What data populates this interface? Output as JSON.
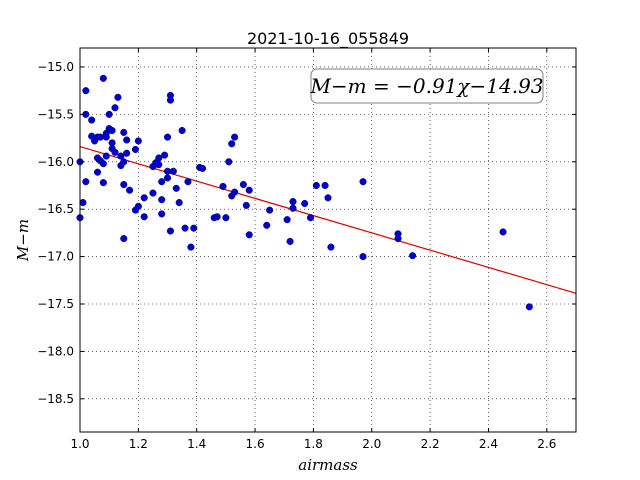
{
  "chart_data": {
    "type": "scatter",
    "title": "2021-10-16_055849",
    "xlabel": "airmass",
    "ylabel": "M−m",
    "xlim": [
      1.0,
      2.7
    ],
    "ylim": [
      -18.85,
      -14.8
    ],
    "y_inverted": true,
    "grid": true,
    "xticks": [
      1.0,
      1.2,
      1.4,
      1.6,
      1.8,
      2.0,
      2.2,
      2.4,
      2.6
    ],
    "xtick_labels": [
      "1.0",
      "1.2",
      "1.4",
      "1.6",
      "1.8",
      "2.0",
      "2.2",
      "2.4",
      "2.6"
    ],
    "yticks": [
      -15.0,
      -15.5,
      -16.0,
      -16.5,
      -17.0,
      -17.5,
      -18.0,
      -18.5
    ],
    "ytick_labels": [
      "−15.0",
      "−15.5",
      "−16.0",
      "−16.5",
      "−17.0",
      "−17.5",
      "−18.0",
      "−18.5"
    ],
    "annotation": "M−m = −0.91χ−14.93",
    "fit": {
      "slope": -0.91,
      "intercept": -14.93,
      "color": "#e00000"
    },
    "marker_color": "#0000cc",
    "points": [
      [
        1.0,
        -16.0
      ],
      [
        1.0,
        -16.59
      ],
      [
        1.01,
        -16.43
      ],
      [
        1.02,
        -16.21
      ],
      [
        1.02,
        -15.25
      ],
      [
        1.02,
        -15.5
      ],
      [
        1.04,
        -15.56
      ],
      [
        1.04,
        -15.73
      ],
      [
        1.05,
        -15.78
      ],
      [
        1.06,
        -15.74
      ],
      [
        1.06,
        -15.96
      ],
      [
        1.06,
        -16.11
      ],
      [
        1.07,
        -15.99
      ],
      [
        1.07,
        -15.74
      ],
      [
        1.08,
        -16.02
      ],
      [
        1.08,
        -15.12
      ],
      [
        1.08,
        -16.22
      ],
      [
        1.09,
        -15.7
      ],
      [
        1.09,
        -15.74
      ],
      [
        1.09,
        -15.94
      ],
      [
        1.1,
        -15.65
      ],
      [
        1.1,
        -15.5
      ],
      [
        1.11,
        -15.67
      ],
      [
        1.11,
        -15.86
      ],
      [
        1.11,
        -15.8
      ],
      [
        1.12,
        -15.43
      ],
      [
        1.12,
        -15.9
      ],
      [
        1.13,
        -15.32
      ],
      [
        1.14,
        -15.94
      ],
      [
        1.14,
        -16.04
      ],
      [
        1.15,
        -16.0
      ],
      [
        1.15,
        -16.24
      ],
      [
        1.15,
        -15.69
      ],
      [
        1.15,
        -16.81
      ],
      [
        1.16,
        -15.77
      ],
      [
        1.16,
        -15.91
      ],
      [
        1.17,
        -16.3
      ],
      [
        1.19,
        -15.87
      ],
      [
        1.19,
        -16.51
      ],
      [
        1.2,
        -15.78
      ],
      [
        1.2,
        -16.47
      ],
      [
        1.22,
        -16.38
      ],
      [
        1.22,
        -16.58
      ],
      [
        1.25,
        -16.33
      ],
      [
        1.25,
        -16.05
      ],
      [
        1.26,
        -16.01
      ],
      [
        1.27,
        -15.96
      ],
      [
        1.27,
        -16.03
      ],
      [
        1.28,
        -16.21
      ],
      [
        1.28,
        -16.55
      ],
      [
        1.28,
        -16.4
      ],
      [
        1.29,
        -15.93
      ],
      [
        1.3,
        -16.1
      ],
      [
        1.3,
        -16.17
      ],
      [
        1.3,
        -15.74
      ],
      [
        1.31,
        -15.3
      ],
      [
        1.31,
        -15.35
      ],
      [
        1.31,
        -16.73
      ],
      [
        1.32,
        -16.1
      ],
      [
        1.33,
        -16.28
      ],
      [
        1.34,
        -16.43
      ],
      [
        1.35,
        -15.67
      ],
      [
        1.36,
        -16.7
      ],
      [
        1.37,
        -16.21
      ],
      [
        1.38,
        -16.9
      ],
      [
        1.39,
        -16.7
      ],
      [
        1.41,
        -16.06
      ],
      [
        1.42,
        -16.07
      ],
      [
        1.46,
        -16.59
      ],
      [
        1.47,
        -16.58
      ],
      [
        1.49,
        -16.26
      ],
      [
        1.5,
        -16.59
      ],
      [
        1.51,
        -16.0
      ],
      [
        1.52,
        -16.36
      ],
      [
        1.52,
        -15.81
      ],
      [
        1.53,
        -15.74
      ],
      [
        1.53,
        -16.32
      ],
      [
        1.56,
        -16.24
      ],
      [
        1.57,
        -16.46
      ],
      [
        1.58,
        -16.3
      ],
      [
        1.58,
        -16.77
      ],
      [
        1.64,
        -16.67
      ],
      [
        1.65,
        -16.51
      ],
      [
        1.71,
        -16.61
      ],
      [
        1.72,
        -16.84
      ],
      [
        1.73,
        -16.42
      ],
      [
        1.73,
        -16.49
      ],
      [
        1.77,
        -16.44
      ],
      [
        1.79,
        -16.59
      ],
      [
        1.81,
        -16.25
      ],
      [
        1.84,
        -16.25
      ],
      [
        1.85,
        -16.38
      ],
      [
        1.86,
        -16.9
      ],
      [
        1.97,
        -16.21
      ],
      [
        1.97,
        -17.0
      ],
      [
        2.09,
        -16.76
      ],
      [
        2.09,
        -16.81
      ],
      [
        2.14,
        -16.99
      ],
      [
        2.45,
        -16.74
      ],
      [
        2.54,
        -17.53
      ]
    ]
  }
}
